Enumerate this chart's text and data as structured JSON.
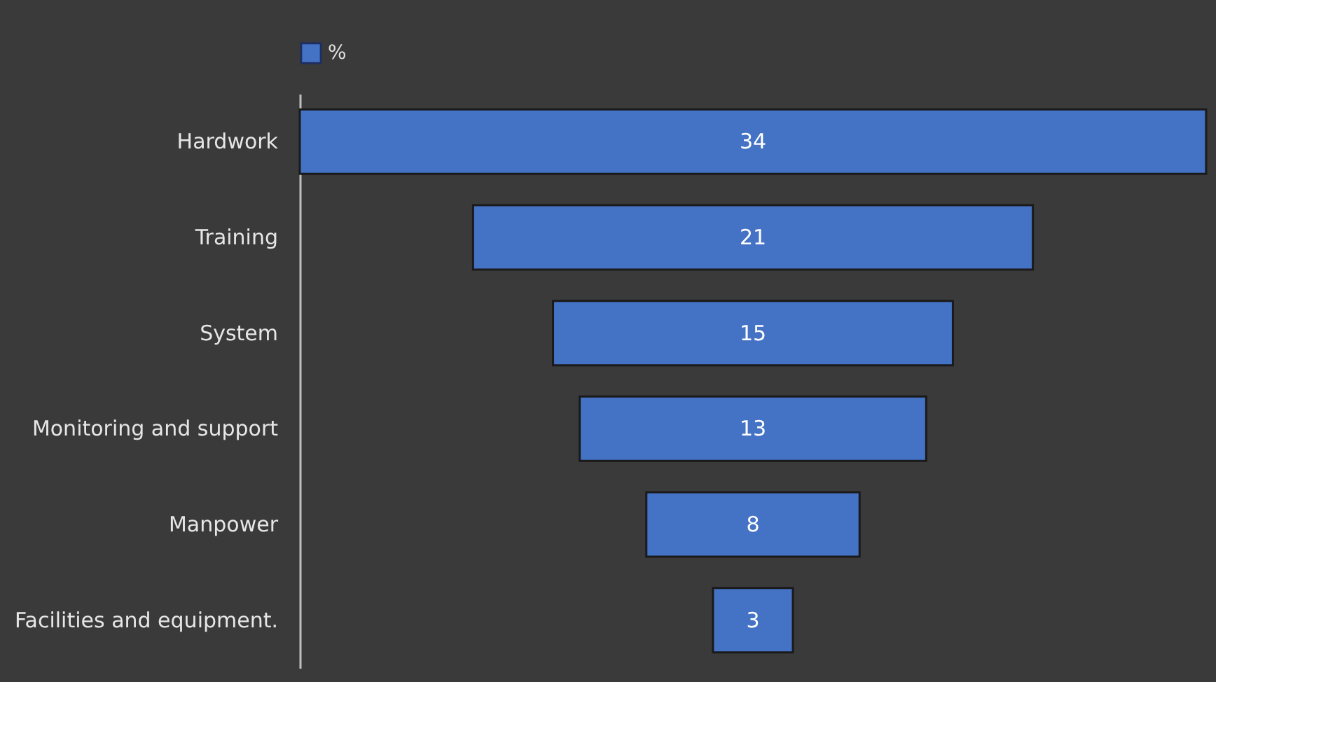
{
  "chart_data": {
    "type": "other",
    "categories": [
      "Hardwork",
      "Training",
      "System",
      "Monitoring and support",
      "Manpower",
      "Facilities and equipment."
    ],
    "series": [
      {
        "name": "%",
        "color": "#4472c4",
        "values": [
          34,
          21,
          15,
          13,
          8,
          3
        ]
      }
    ],
    "data_labels": true,
    "legend": "top"
  }
}
